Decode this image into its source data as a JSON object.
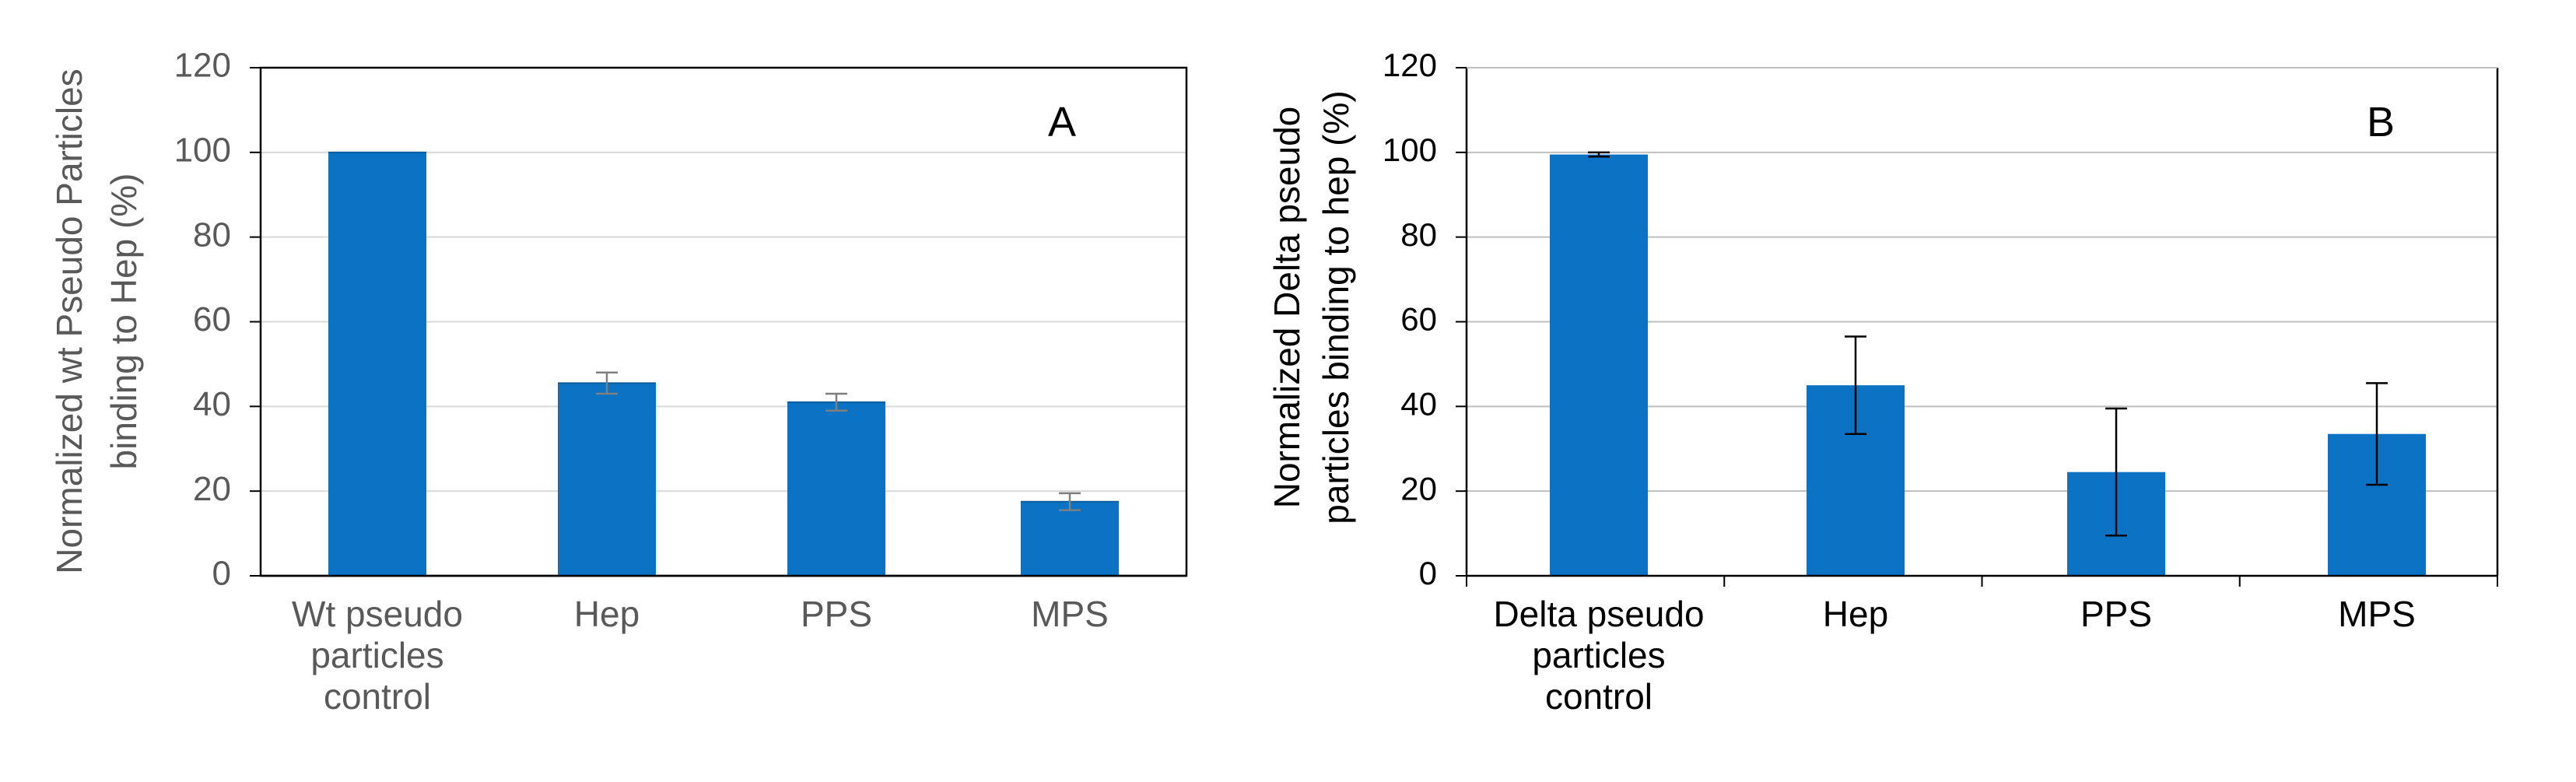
{
  "chart_data": [
    {
      "type": "bar",
      "panel_label": "A",
      "title": "",
      "ylabel": [
        "Normalized wt Pseudo Particles",
        "binding to Hep (%)"
      ],
      "xlabel": "",
      "categories": [
        [
          "Wt pseudo",
          "particles",
          "control"
        ],
        [
          "Hep"
        ],
        [
          "PPS"
        ],
        [
          "MPS"
        ]
      ],
      "values": [
        100,
        45.5,
        41,
        17.5
      ],
      "error": [
        0,
        2.5,
        2,
        2
      ],
      "ylim": [
        0,
        120
      ],
      "yticks": [
        0,
        20,
        40,
        60,
        80,
        100,
        120
      ],
      "grid": true,
      "bar_color": "#0b72c4"
    },
    {
      "type": "bar",
      "panel_label": "B",
      "title": "",
      "ylabel": [
        "Normalized Delta pseudo",
        "particles binding to hep (%)"
      ],
      "xlabel": "",
      "categories": [
        [
          "Delta pseudo",
          "particles",
          "control"
        ],
        [
          "Hep"
        ],
        [
          "PPS"
        ],
        [
          "MPS"
        ]
      ],
      "values": [
        99.5,
        45,
        24.5,
        33.5
      ],
      "error": [
        0.5,
        11.5,
        15,
        12
      ],
      "ylim": [
        0,
        120
      ],
      "yticks": [
        0,
        20,
        40,
        60,
        80,
        100,
        120
      ],
      "grid": true,
      "bar_color": "#0b72c4"
    }
  ]
}
